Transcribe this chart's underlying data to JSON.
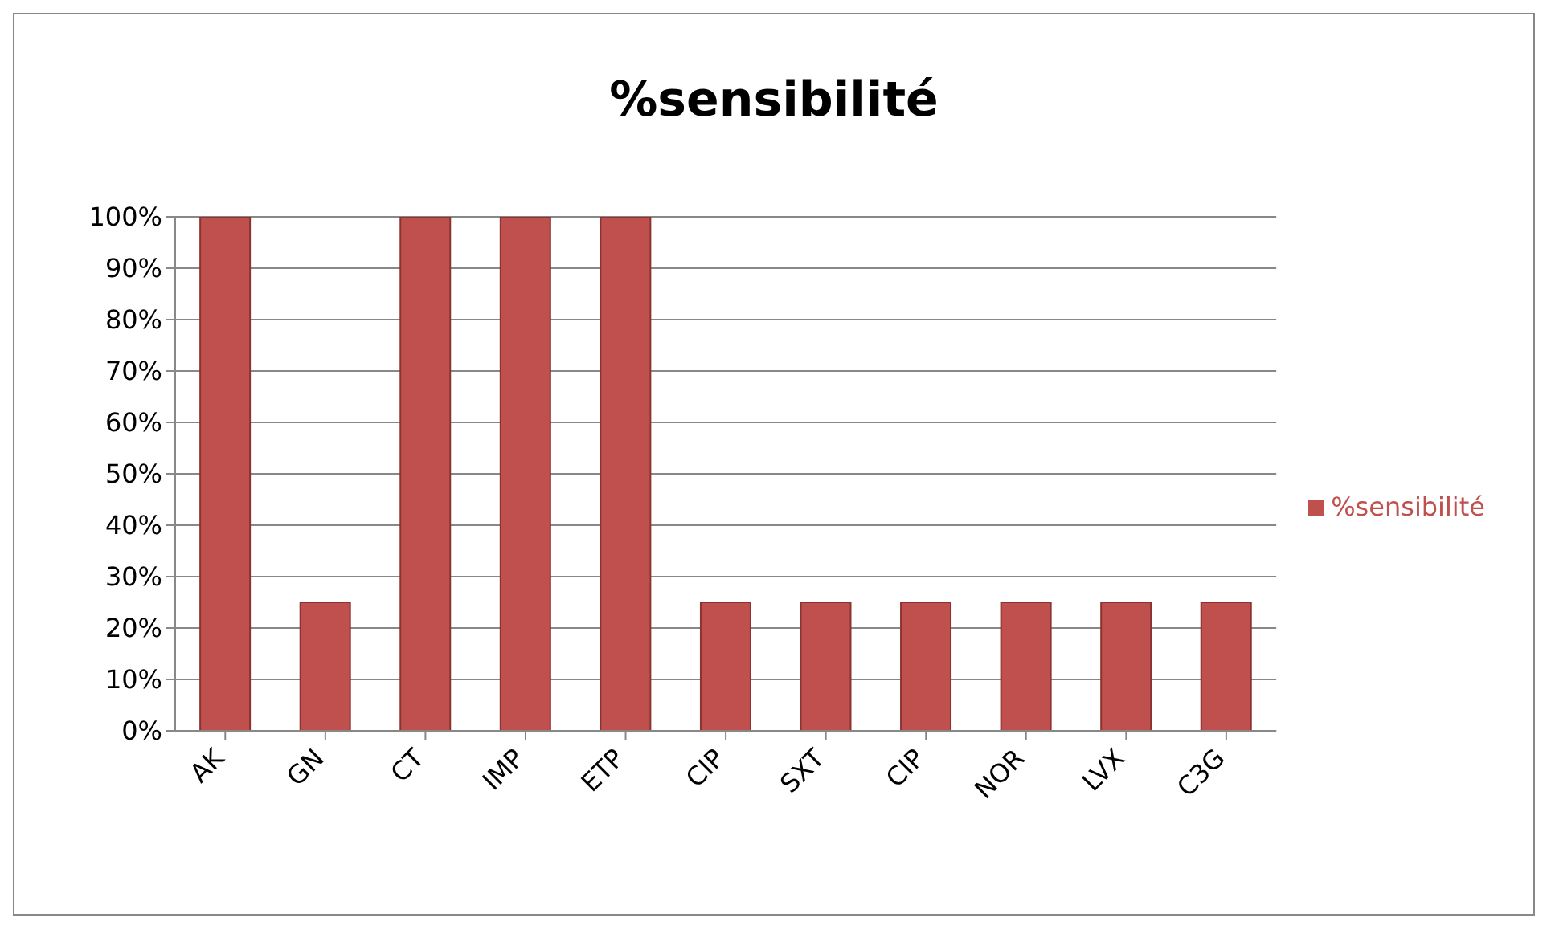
{
  "chart_data": {
    "type": "bar",
    "title": "%sensibilité",
    "categories": [
      "AK",
      "GN",
      "CT",
      "IMP",
      "ETP",
      "CIP",
      "SXT",
      "CIP",
      "NOR",
      "LVX",
      "C3G"
    ],
    "series": [
      {
        "name": "%sensibilité",
        "color": "#c0504d",
        "values": [
          100,
          25,
          100,
          100,
          100,
          25,
          25,
          25,
          25,
          25,
          25
        ]
      }
    ],
    "ylim": [
      0,
      100
    ],
    "yticks": [
      {
        "value": 0,
        "label": "0%"
      },
      {
        "value": 10,
        "label": "10%"
      },
      {
        "value": 20,
        "label": "20%"
      },
      {
        "value": 30,
        "label": "30%"
      },
      {
        "value": 40,
        "label": "40%"
      },
      {
        "value": 50,
        "label": "50%"
      },
      {
        "value": 60,
        "label": "60%"
      },
      {
        "value": 70,
        "label": "70%"
      },
      {
        "value": 80,
        "label": "80%"
      },
      {
        "value": 90,
        "label": "90%"
      },
      {
        "value": 100,
        "label": "100%"
      }
    ],
    "grid": "y",
    "legend": "right"
  }
}
